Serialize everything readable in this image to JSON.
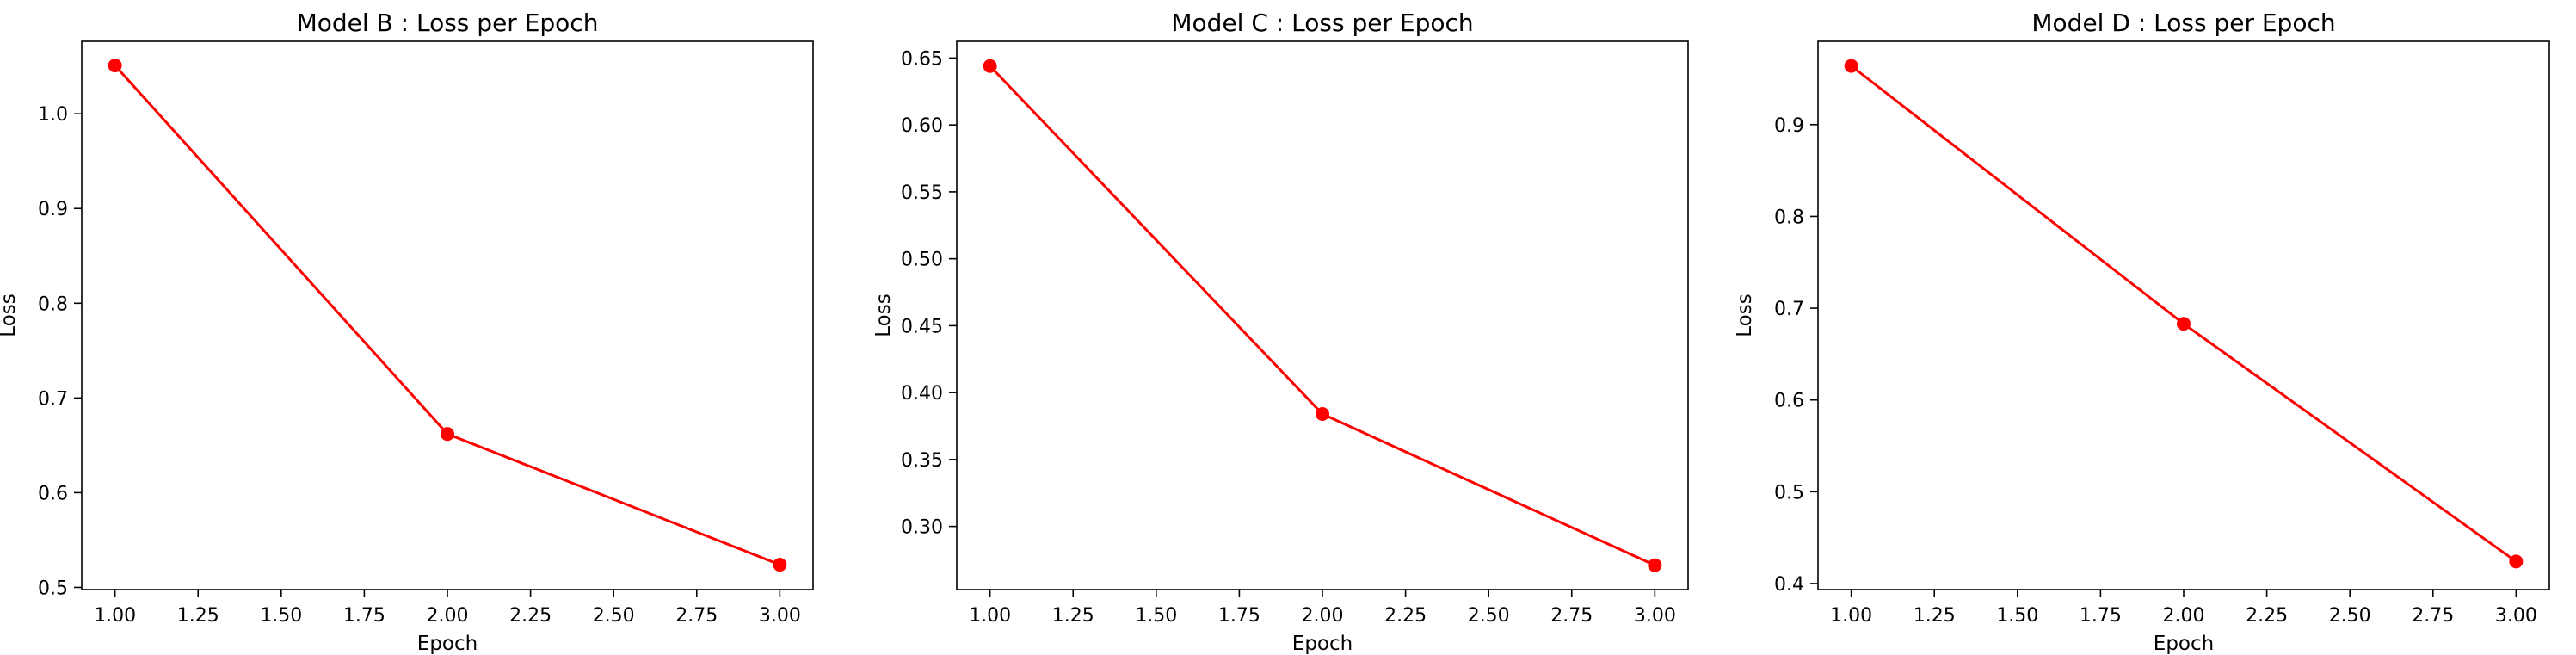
{
  "chart_data": [
    {
      "type": "line",
      "title": "Model B : Loss per Epoch",
      "xlabel": "Epoch",
      "ylabel": "Loss",
      "xlim": [
        0.9,
        3.1
      ],
      "ylim": [
        0.4977,
        1.0765
      ],
      "xticks": [
        1.0,
        1.25,
        1.5,
        1.75,
        2.0,
        2.25,
        2.5,
        2.75,
        3.0
      ],
      "xtick_labels": [
        "1.00",
        "1.25",
        "1.50",
        "1.75",
        "2.00",
        "2.25",
        "2.50",
        "2.75",
        "3.00"
      ],
      "yticks": [
        0.5,
        0.6,
        0.7,
        0.8,
        0.9,
        1.0
      ],
      "ytick_labels": [
        "0.5",
        "0.6",
        "0.7",
        "0.8",
        "0.9",
        "1.0"
      ],
      "grid": false,
      "series": [
        {
          "x": [
            1,
            2,
            3
          ],
          "y": [
            1.051,
            0.662,
            0.524
          ],
          "color": "#ff0000",
          "marker": "circle"
        }
      ]
    },
    {
      "type": "line",
      "title": "Model C : Loss per Epoch",
      "xlabel": "Epoch",
      "ylabel": "Loss",
      "xlim": [
        0.9,
        3.1
      ],
      "ylim": [
        0.2528,
        0.6625
      ],
      "xticks": [
        1.0,
        1.25,
        1.5,
        1.75,
        2.0,
        2.25,
        2.5,
        2.75,
        3.0
      ],
      "xtick_labels": [
        "1.00",
        "1.25",
        "1.50",
        "1.75",
        "2.00",
        "2.25",
        "2.50",
        "2.75",
        "3.00"
      ],
      "yticks": [
        0.3,
        0.35,
        0.4,
        0.45,
        0.5,
        0.55,
        0.6,
        0.65
      ],
      "ytick_labels": [
        "0.30",
        "0.35",
        "0.40",
        "0.45",
        "0.50",
        "0.55",
        "0.60",
        "0.65"
      ],
      "grid": false,
      "series": [
        {
          "x": [
            1,
            2,
            3
          ],
          "y": [
            0.644,
            0.384,
            0.271
          ],
          "color": "#ff0000",
          "marker": "circle"
        }
      ]
    },
    {
      "type": "line",
      "title": "Model D : Loss per Epoch",
      "xlabel": "Epoch",
      "ylabel": "Loss",
      "xlim": [
        0.9,
        3.1
      ],
      "ylim": [
        0.3934,
        0.9908
      ],
      "xticks": [
        1.0,
        1.25,
        1.5,
        1.75,
        2.0,
        2.25,
        2.5,
        2.75,
        3.0
      ],
      "xtick_labels": [
        "1.00",
        "1.25",
        "1.50",
        "1.75",
        "2.00",
        "2.25",
        "2.50",
        "2.75",
        "3.00"
      ],
      "yticks": [
        0.4,
        0.5,
        0.6,
        0.7,
        0.8,
        0.9
      ],
      "ytick_labels": [
        "0.4",
        "0.5",
        "0.6",
        "0.7",
        "0.8",
        "0.9"
      ],
      "grid": false,
      "series": [
        {
          "x": [
            1,
            2,
            3
          ],
          "y": [
            0.964,
            0.683,
            0.424
          ],
          "color": "#ff0000",
          "marker": "circle"
        }
      ]
    }
  ]
}
